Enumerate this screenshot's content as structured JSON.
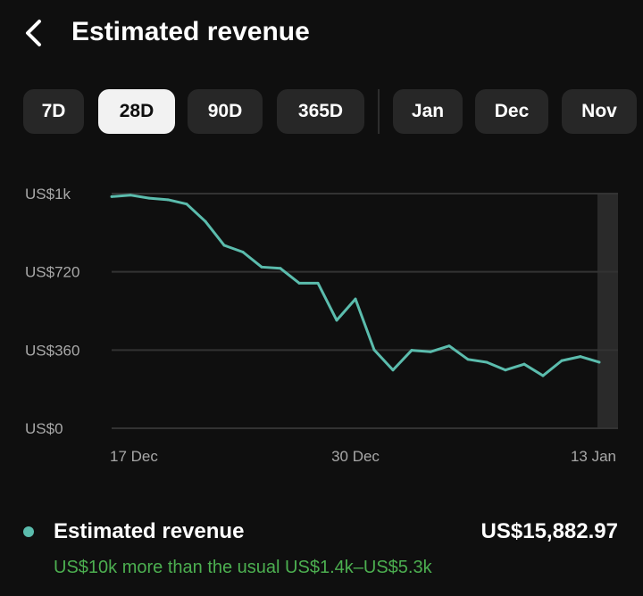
{
  "header": {
    "title": "Estimated revenue",
    "back_icon": "chevron-left-icon"
  },
  "tabs": [
    {
      "label": "7D",
      "selected": false
    },
    {
      "label": "28D",
      "selected": true
    },
    {
      "label": "90D",
      "selected": false
    },
    {
      "label": "365D",
      "selected": false
    },
    {
      "label": "Jan",
      "selected": false
    },
    {
      "label": "Dec",
      "selected": false
    },
    {
      "label": "Nov",
      "selected": false
    }
  ],
  "colors": {
    "line": "#5bbcad",
    "note": "#4caf50",
    "background": "#0f0f0f"
  },
  "chart_data": {
    "type": "line",
    "ylim": [
      0,
      1080
    ],
    "yticks": [
      0,
      360,
      720,
      1080
    ],
    "ytick_labels": [
      "US$0",
      "US$360",
      "US$720",
      "US$1k"
    ],
    "xtick_labels": [
      "17 Dec",
      "30 Dec",
      "13 Jan"
    ],
    "xtick_indices": [
      0,
      13,
      26
    ],
    "grid": true,
    "series": [
      {
        "name": "Estimated revenue",
        "values": [
          1066,
          1073,
          1059,
          1052,
          1032,
          952,
          842,
          811,
          742,
          736,
          668,
          668,
          497,
          595,
          361,
          268,
          359,
          352,
          379,
          317,
          304,
          268,
          295,
          242,
          311,
          330,
          304
        ]
      }
    ]
  },
  "legend": {
    "name": "Estimated revenue",
    "value": "US$15,882.97",
    "note": "US$10k more than the usual US$1.4k–US$5.3k"
  }
}
